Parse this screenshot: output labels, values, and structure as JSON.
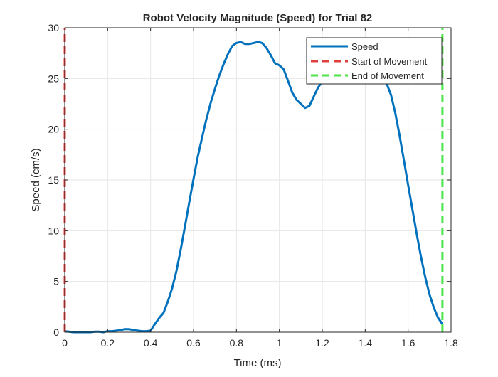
{
  "chart_data": {
    "type": "line",
    "title": "Robot Velocity Magnitude (Speed) for Trial 82",
    "xlabel": "Time (ms)",
    "ylabel": "Speed (cm/s)",
    "xlim": [
      0,
      1.8
    ],
    "ylim": [
      0,
      30
    ],
    "xticks": [
      0,
      0.2,
      0.4,
      0.6,
      0.8,
      1,
      1.2,
      1.4,
      1.6,
      1.8
    ],
    "xtick_labels": [
      "0",
      "0.2",
      "0.4",
      "0.6",
      "0.8",
      "1",
      "1.2",
      "1.4",
      "1.6",
      "1.8"
    ],
    "yticks": [
      0,
      5,
      10,
      15,
      20,
      25,
      30
    ],
    "ytick_labels": [
      "0",
      "5",
      "10",
      "15",
      "20",
      "25",
      "30"
    ],
    "grid": true,
    "legend_position": "top-right",
    "series": [
      {
        "name": "Speed",
        "color": "#0072BD",
        "style": "solid",
        "x": [
          0,
          0.02,
          0.04,
          0.06,
          0.08,
          0.1,
          0.12,
          0.14,
          0.16,
          0.18,
          0.2,
          0.22,
          0.24,
          0.26,
          0.28,
          0.3,
          0.32,
          0.34,
          0.36,
          0.38,
          0.4,
          0.42,
          0.44,
          0.46,
          0.48,
          0.5,
          0.52,
          0.54,
          0.56,
          0.58,
          0.6,
          0.62,
          0.64,
          0.66,
          0.68,
          0.7,
          0.72,
          0.74,
          0.76,
          0.78,
          0.8,
          0.82,
          0.84,
          0.86,
          0.88,
          0.9,
          0.92,
          0.94,
          0.96,
          0.98,
          1.0,
          1.02,
          1.04,
          1.06,
          1.08,
          1.1,
          1.12,
          1.14,
          1.16,
          1.18,
          1.2,
          1.22,
          1.24,
          1.26,
          1.28,
          1.3,
          1.32,
          1.34,
          1.36,
          1.38,
          1.4,
          1.42,
          1.44,
          1.46,
          1.48,
          1.5,
          1.52,
          1.54,
          1.56,
          1.58,
          1.6,
          1.62,
          1.64,
          1.66,
          1.68,
          1.7,
          1.72,
          1.74,
          1.76
        ],
        "values": [
          0.1,
          0.05,
          0.0,
          0.0,
          0.0,
          0.0,
          0.0,
          0.05,
          0.05,
          0.0,
          0.1,
          0.1,
          0.15,
          0.2,
          0.3,
          0.3,
          0.2,
          0.15,
          0.1,
          0.1,
          0.15,
          0.8,
          1.4,
          1.9,
          3.0,
          4.3,
          6.0,
          8.1,
          10.4,
          12.8,
          15.1,
          17.3,
          19.2,
          21.0,
          22.6,
          24.0,
          25.3,
          26.4,
          27.4,
          28.2,
          28.5,
          28.6,
          28.4,
          28.4,
          28.5,
          28.6,
          28.5,
          28.0,
          27.3,
          26.5,
          26.3,
          25.9,
          24.8,
          23.6,
          22.9,
          22.5,
          22.1,
          22.3,
          23.2,
          24.1,
          24.7,
          25.0,
          25.3,
          25.5,
          25.7,
          25.8,
          25.9,
          26.0,
          26.1,
          26.1,
          26.0,
          25.9,
          25.7,
          25.5,
          25.1,
          24.5,
          23.4,
          21.6,
          19.4,
          17.0,
          14.5,
          12.1,
          9.7,
          7.4,
          5.4,
          3.7,
          2.4,
          1.4,
          0.8
        ]
      },
      {
        "name": "Start of Movement",
        "color": "#E0403D",
        "style": "dashed",
        "x": [
          0,
          0
        ],
        "values": [
          0,
          30
        ]
      },
      {
        "name": "End of Movement",
        "color": "#4DE34A",
        "style": "dashed",
        "x": [
          1.76,
          1.76
        ],
        "values": [
          0,
          30
        ]
      }
    ]
  }
}
